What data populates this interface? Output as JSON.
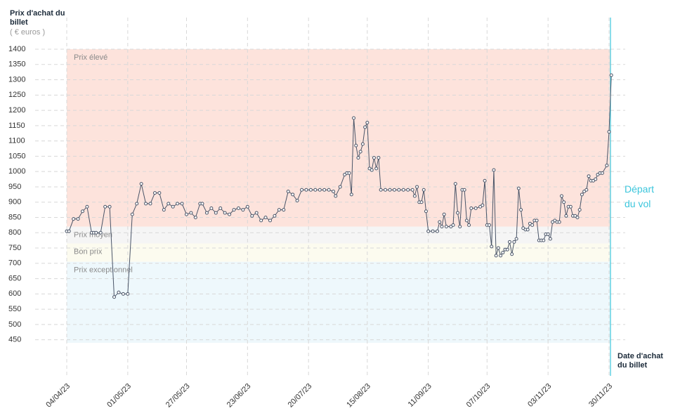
{
  "chart_data": {
    "type": "line",
    "y_title": "Prix d'achat du billet",
    "y_unit": "( € euros )",
    "x_title": "Date d'achat du billet",
    "xlim": [
      "04/04/23",
      "30/11/23"
    ],
    "xticks": [
      "04/04/23",
      "01/05/23",
      "27/05/23",
      "23/06/23",
      "20/07/23",
      "15/08/23",
      "11/09/23",
      "07/10/23",
      "03/11/23",
      "30/11/23"
    ],
    "ylim": [
      440,
      1400
    ],
    "yticks": [
      450,
      500,
      550,
      600,
      650,
      700,
      750,
      800,
      850,
      900,
      950,
      1000,
      1050,
      1100,
      1150,
      1200,
      1250,
      1300,
      1350,
      1400
    ],
    "grid": true,
    "zones": [
      {
        "label": "Prix élevé",
        "from": 820,
        "to": 1400,
        "color": "#fde3dc"
      },
      {
        "label": "Prix moyen",
        "from": 765,
        "to": 820,
        "color": "#f5f5f5"
      },
      {
        "label": "Bon prix",
        "from": 705,
        "to": 765,
        "color": "#fcfbef"
      },
      {
        "label": "Prix exceptionnel",
        "from": 440,
        "to": 705,
        "color": "#eef8fc"
      }
    ],
    "departure": {
      "label": "Départ du vol",
      "x": "30/11/23",
      "color": "#3cc6dc"
    },
    "x": [
      "04/04/23",
      "05/04/23",
      "07/04/23",
      "09/04/23",
      "11/04/23",
      "13/04/23",
      "15/04/23",
      "16/04/23",
      "17/04/23",
      "19/04/23",
      "21/04/23",
      "23/04/23",
      "25/04/23",
      "27/04/23",
      "29/04/23",
      "01/05/23",
      "03/05/23",
      "05/05/23",
      "07/05/23",
      "09/05/23",
      "11/05/23",
      "13/05/23",
      "15/05/23",
      "17/05/23",
      "19/05/23",
      "21/05/23",
      "23/05/23",
      "25/05/23",
      "27/05/23",
      "29/05/23",
      "31/05/23",
      "02/06/23",
      "03/06/23",
      "05/06/23",
      "07/06/23",
      "09/06/23",
      "11/06/23",
      "13/06/23",
      "15/06/23",
      "17/06/23",
      "19/06/23",
      "21/06/23",
      "23/06/23",
      "25/06/23",
      "27/06/23",
      "29/06/23",
      "01/07/23",
      "03/07/23",
      "05/07/23",
      "07/07/23",
      "09/07/23",
      "11/07/23",
      "13/07/23",
      "15/07/23",
      "17/07/23",
      "19/07/23",
      "21/07/23",
      "23/07/23",
      "25/07/23",
      "27/07/23",
      "29/07/23",
      "31/07/23",
      "01/08/23",
      "03/08/23",
      "05/08/23",
      "06/08/23",
      "07/08/23",
      "08/08/23",
      "09/08/23",
      "10/08/23",
      "11/08/23",
      "12/08/23",
      "13/08/23",
      "14/08/23",
      "15/08/23",
      "16/08/23",
      "17/08/23",
      "18/08/23",
      "19/08/23",
      "20/08/23",
      "21/08/23",
      "23/08/23",
      "25/08/23",
      "27/08/23",
      "29/08/23",
      "31/08/23",
      "02/09/23",
      "04/09/23",
      "05/09/23",
      "06/09/23",
      "07/09/23",
      "08/09/23",
      "09/09/23",
      "10/09/23",
      "11/09/23",
      "13/09/23",
      "15/09/23",
      "16/09/23",
      "17/09/23",
      "18/09/23",
      "19/09/23",
      "21/09/23",
      "22/09/23",
      "23/09/23",
      "24/09/23",
      "25/09/23",
      "26/09/23",
      "27/09/23",
      "28/09/23",
      "29/09/23",
      "30/09/23",
      "02/10/23",
      "04/10/23",
      "05/10/23",
      "06/10/23",
      "07/10/23",
      "08/10/23",
      "09/10/23",
      "10/10/23",
      "11/10/23",
      "12/10/23",
      "13/10/23",
      "14/10/23",
      "15/10/23",
      "16/10/23",
      "17/10/23",
      "18/10/23",
      "19/10/23",
      "20/10/23",
      "21/10/23",
      "22/10/23",
      "23/10/23",
      "24/10/23",
      "25/10/23",
      "26/10/23",
      "27/10/23",
      "28/10/23",
      "29/10/23",
      "30/10/23",
      "31/10/23",
      "01/11/23",
      "02/11/23",
      "03/11/23",
      "04/11/23",
      "05/11/23",
      "06/11/23",
      "07/11/23",
      "08/11/23",
      "09/11/23",
      "10/11/23",
      "11/11/23",
      "12/11/23",
      "13/11/23",
      "14/11/23",
      "15/11/23",
      "16/11/23",
      "17/11/23",
      "18/11/23",
      "19/11/23",
      "20/11/23",
      "21/11/23",
      "22/11/23",
      "23/11/23",
      "24/11/23",
      "25/11/23",
      "26/11/23",
      "27/11/23",
      "29/11/23",
      "30/11/23",
      "01/12/23"
    ],
    "series": [
      {
        "color": "#4a5568",
        "values": [
          805,
          805,
          845,
          845,
          870,
          885,
          800,
          800,
          800,
          800,
          885,
          885,
          590,
          605,
          600,
          600,
          860,
          895,
          960,
          895,
          895,
          930,
          930,
          875,
          895,
          885,
          895,
          895,
          860,
          865,
          850,
          895,
          895,
          865,
          880,
          865,
          880,
          865,
          860,
          875,
          880,
          875,
          885,
          855,
          865,
          840,
          850,
          840,
          855,
          875,
          875,
          935,
          925,
          905,
          940,
          940,
          940,
          940,
          940,
          940,
          940,
          935,
          920,
          950,
          990,
          995,
          995,
          925,
          1175,
          1085,
          1045,
          1065,
          1090,
          1145,
          1160,
          1010,
          1005,
          1045,
          1010,
          1045,
          940,
          940,
          940,
          940,
          940,
          940,
          940,
          940,
          920,
          950,
          900,
          900,
          940,
          870,
          805,
          805,
          805,
          835,
          820,
          860,
          820,
          820,
          825,
          960,
          865,
          820,
          940,
          940,
          840,
          825,
          880,
          880,
          885,
          890,
          970,
          825,
          825,
          755,
          1005,
          725,
          750,
          725,
          735,
          745,
          745,
          770,
          730,
          770,
          780,
          945,
          875,
          815,
          810,
          810,
          830,
          825,
          840,
          840,
          775,
          775,
          775,
          795,
          795,
          780,
          835,
          840,
          835,
          835,
          920,
          900,
          855,
          885,
          885,
          855,
          855,
          850,
          875,
          925,
          935,
          940,
          985,
          970,
          970,
          975,
          990,
          995,
          995,
          1020,
          1130,
          1315
        ]
      }
    ]
  }
}
